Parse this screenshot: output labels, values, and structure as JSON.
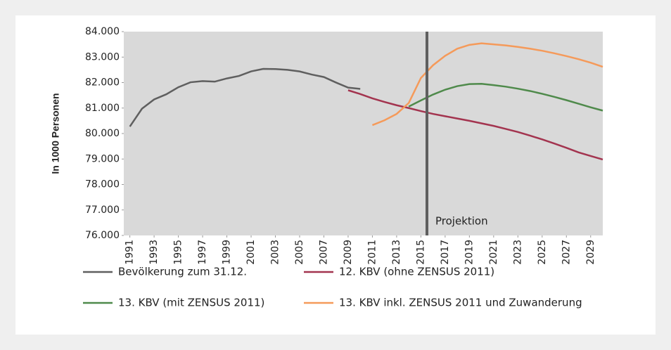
{
  "chart_data": {
    "type": "line",
    "y_label": "In 1000 Personen",
    "x": [
      1991,
      1992,
      1993,
      1994,
      1995,
      1996,
      1997,
      1998,
      1999,
      2000,
      2001,
      2002,
      2003,
      2004,
      2005,
      2006,
      2007,
      2008,
      2009,
      2010,
      2011,
      2012,
      2013,
      2014,
      2015,
      2016,
      2017,
      2018,
      2019,
      2020,
      2021,
      2022,
      2023,
      2024,
      2025,
      2026,
      2027,
      2028,
      2029,
      2030
    ],
    "xlim": [
      1990.5,
      2030
    ],
    "xticks": [
      1991,
      1993,
      1995,
      1997,
      1999,
      2001,
      2003,
      2005,
      2007,
      2009,
      2011,
      2013,
      2015,
      2017,
      2019,
      2021,
      2023,
      2025,
      2027,
      2029
    ],
    "ylim": [
      76000,
      84000
    ],
    "yticks": [
      {
        "value": 76000,
        "label": "76.000"
      },
      {
        "value": 77000,
        "label": "77.000"
      },
      {
        "value": 78000,
        "label": "78.000"
      },
      {
        "value": 79000,
        "label": "79.000"
      },
      {
        "value": 80000,
        "label": "80.000"
      },
      {
        "value": 81000,
        "label": "81.000"
      },
      {
        "value": 82000,
        "label": "82.000"
      },
      {
        "value": 83000,
        "label": "83.000"
      },
      {
        "value": 84000,
        "label": "84.000"
      }
    ],
    "annotation": {
      "text": "Projektion",
      "x": 2015.5
    },
    "series": [
      {
        "name": "Bevölkerung zum 31.12.",
        "color": "#5f5f5f",
        "values": [
          80275,
          80975,
          81338,
          81539,
          81818,
          82012,
          82057,
          82037,
          82163,
          82260,
          82440,
          82537,
          82532,
          82501,
          82438,
          82315,
          82218,
          82002,
          81802,
          81752,
          null,
          null,
          null,
          null,
          null,
          null,
          null,
          null,
          null,
          null,
          null,
          null,
          null,
          null,
          null,
          null,
          null,
          null,
          null,
          null
        ]
      },
      {
        "name": "12. KBV (ohne ZENSUS 2011)",
        "color": "#a3344f",
        "values": [
          null,
          null,
          null,
          null,
          null,
          null,
          null,
          null,
          null,
          null,
          null,
          null,
          null,
          null,
          null,
          null,
          null,
          null,
          81700,
          81550,
          81380,
          81240,
          81110,
          81000,
          80880,
          80770,
          80680,
          80590,
          80500,
          80400,
          80300,
          80180,
          80060,
          79920,
          79770,
          79610,
          79440,
          79260,
          79120,
          78980
        ]
      },
      {
        "name": "13. KBV (mit ZENSUS 2011)",
        "color": "#4f8a4b",
        "values": [
          null,
          null,
          null,
          null,
          null,
          null,
          null,
          null,
          null,
          null,
          null,
          null,
          null,
          null,
          null,
          null,
          null,
          null,
          null,
          null,
          null,
          null,
          null,
          81060,
          81300,
          81530,
          81720,
          81860,
          81940,
          81950,
          81900,
          81840,
          81760,
          81670,
          81560,
          81440,
          81310,
          81170,
          81030,
          80900
        ]
      },
      {
        "name": "13. KBV inkl. ZENSUS 2011 und Zuwanderung",
        "color": "#f59a5a",
        "values": [
          null,
          null,
          null,
          null,
          null,
          null,
          null,
          null,
          null,
          null,
          null,
          null,
          null,
          null,
          null,
          null,
          null,
          null,
          null,
          null,
          80330,
          80520,
          80770,
          81200,
          82180,
          82680,
          83050,
          83330,
          83480,
          83540,
          83500,
          83460,
          83400,
          83330,
          83250,
          83150,
          83040,
          82920,
          82780,
          82620
        ]
      }
    ]
  }
}
